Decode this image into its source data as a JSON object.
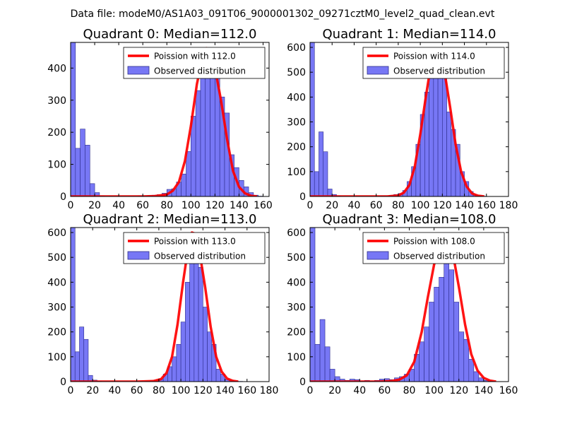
{
  "suptitle": "Data file: modeM0/AS1A03_091T06_9000001302_09271cztM0_level2_quad_clean.evt",
  "colors": {
    "bar_fill": "#7777f5",
    "bar_edge": "#2d2d8c",
    "line": "#ff0000"
  },
  "chart_data": [
    {
      "type": "bar",
      "title": "Quadrant 0: Median=112.0",
      "xlim": [
        0,
        165
      ],
      "ylim": [
        0,
        480
      ],
      "xticks": [
        0,
        20,
        40,
        60,
        80,
        100,
        120,
        140,
        160
      ],
      "yticks": [
        0,
        100,
        200,
        300,
        400
      ],
      "bin_width": 4,
      "legend": {
        "line_label": "Poission with 112.0",
        "bar_label": "Observed distribution",
        "position": "upper-right"
      },
      "bars": [
        [
          0,
          480
        ],
        [
          4,
          150
        ],
        [
          8,
          210
        ],
        [
          12,
          160
        ],
        [
          16,
          40
        ],
        [
          20,
          12
        ],
        [
          24,
          2
        ],
        [
          28,
          1
        ],
        [
          32,
          1
        ],
        [
          36,
          1
        ],
        [
          40,
          1
        ],
        [
          44,
          1
        ],
        [
          48,
          1
        ],
        [
          52,
          1
        ],
        [
          56,
          2
        ],
        [
          60,
          2
        ],
        [
          64,
          3
        ],
        [
          68,
          4
        ],
        [
          72,
          6
        ],
        [
          76,
          10
        ],
        [
          80,
          22
        ],
        [
          84,
          24
        ],
        [
          88,
          45
        ],
        [
          92,
          70
        ],
        [
          96,
          140
        ],
        [
          100,
          250
        ],
        [
          104,
          330
        ],
        [
          108,
          400
        ],
        [
          112,
          460
        ],
        [
          116,
          450
        ],
        [
          120,
          380
        ],
        [
          124,
          310
        ],
        [
          128,
          260
        ],
        [
          132,
          130
        ],
        [
          136,
          90
        ],
        [
          140,
          50
        ],
        [
          144,
          30
        ],
        [
          148,
          12
        ],
        [
          152,
          4
        ],
        [
          156,
          1
        ]
      ],
      "curve": [
        [
          0,
          0
        ],
        [
          60,
          0
        ],
        [
          70,
          1
        ],
        [
          80,
          6
        ],
        [
          85,
          18
        ],
        [
          90,
          45
        ],
        [
          95,
          110
        ],
        [
          100,
          220
        ],
        [
          105,
          350
        ],
        [
          110,
          440
        ],
        [
          113,
          462
        ],
        [
          116,
          455
        ],
        [
          120,
          400
        ],
        [
          125,
          300
        ],
        [
          130,
          180
        ],
        [
          135,
          80
        ],
        [
          140,
          30
        ],
        [
          145,
          10
        ],
        [
          150,
          2
        ],
        [
          155,
          0
        ]
      ]
    },
    {
      "type": "bar",
      "title": "Quadrant 1: Median=114.0",
      "xlim": [
        0,
        180
      ],
      "ylim": [
        0,
        620
      ],
      "xticks": [
        0,
        20,
        40,
        60,
        80,
        100,
        120,
        140,
        160,
        180
      ],
      "yticks": [
        0,
        100,
        200,
        300,
        400,
        500,
        600
      ],
      "bin_width": 4,
      "legend": {
        "line_label": "Poission with 114.0",
        "bar_label": "Observed distribution",
        "position": "upper-right"
      },
      "bars": [
        [
          0,
          620
        ],
        [
          4,
          100
        ],
        [
          8,
          260
        ],
        [
          12,
          180
        ],
        [
          16,
          30
        ],
        [
          20,
          8
        ],
        [
          24,
          2
        ],
        [
          28,
          1
        ],
        [
          32,
          1
        ],
        [
          36,
          1
        ],
        [
          40,
          1
        ],
        [
          44,
          1
        ],
        [
          48,
          1
        ],
        [
          52,
          1
        ],
        [
          56,
          1
        ],
        [
          60,
          1
        ],
        [
          64,
          2
        ],
        [
          68,
          2
        ],
        [
          72,
          4
        ],
        [
          76,
          8
        ],
        [
          80,
          12
        ],
        [
          84,
          24
        ],
        [
          88,
          60
        ],
        [
          92,
          120
        ],
        [
          96,
          210
        ],
        [
          100,
          330
        ],
        [
          104,
          420
        ],
        [
          108,
          500
        ],
        [
          112,
          560
        ],
        [
          116,
          520
        ],
        [
          120,
          490
        ],
        [
          124,
          340
        ],
        [
          128,
          270
        ],
        [
          132,
          210
        ],
        [
          136,
          100
        ],
        [
          140,
          60
        ],
        [
          144,
          20
        ],
        [
          148,
          8
        ],
        [
          152,
          3
        ],
        [
          156,
          1
        ]
      ],
      "curve": [
        [
          0,
          0
        ],
        [
          70,
          0
        ],
        [
          80,
          4
        ],
        [
          85,
          15
        ],
        [
          90,
          45
        ],
        [
          95,
          120
        ],
        [
          100,
          250
        ],
        [
          105,
          400
        ],
        [
          110,
          540
        ],
        [
          115,
          595
        ],
        [
          118,
          580
        ],
        [
          122,
          500
        ],
        [
          127,
          360
        ],
        [
          132,
          210
        ],
        [
          137,
          100
        ],
        [
          142,
          40
        ],
        [
          147,
          12
        ],
        [
          152,
          3
        ],
        [
          158,
          0
        ]
      ]
    },
    {
      "type": "bar",
      "title": "Quadrant 2: Median=113.0",
      "xlim": [
        0,
        180
      ],
      "ylim": [
        0,
        620
      ],
      "xticks": [
        0,
        20,
        40,
        60,
        80,
        100,
        120,
        140,
        160,
        180
      ],
      "yticks": [
        0,
        100,
        200,
        300,
        400,
        500,
        600
      ],
      "bin_width": 4,
      "legend": {
        "line_label": "Poission with 113.0",
        "bar_label": "Observed distribution",
        "position": "upper-right"
      },
      "bars": [
        [
          0,
          620
        ],
        [
          4,
          120
        ],
        [
          8,
          220
        ],
        [
          12,
          170
        ],
        [
          16,
          25
        ],
        [
          20,
          6
        ],
        [
          24,
          2
        ],
        [
          28,
          1
        ],
        [
          32,
          1
        ],
        [
          36,
          1
        ],
        [
          40,
          1
        ],
        [
          44,
          1
        ],
        [
          48,
          1
        ],
        [
          52,
          1
        ],
        [
          56,
          1
        ],
        [
          60,
          1
        ],
        [
          64,
          1
        ],
        [
          68,
          2
        ],
        [
          72,
          3
        ],
        [
          76,
          5
        ],
        [
          80,
          10
        ],
        [
          84,
          30
        ],
        [
          88,
          60
        ],
        [
          92,
          100
        ],
        [
          96,
          150
        ],
        [
          100,
          240
        ],
        [
          104,
          400
        ],
        [
          108,
          530
        ],
        [
          112,
          550
        ],
        [
          116,
          460
        ],
        [
          120,
          300
        ],
        [
          124,
          200
        ],
        [
          128,
          150
        ],
        [
          132,
          50
        ],
        [
          136,
          30
        ],
        [
          140,
          10
        ],
        [
          144,
          5
        ],
        [
          148,
          2
        ],
        [
          152,
          1
        ]
      ],
      "curve": [
        [
          0,
          0
        ],
        [
          60,
          0
        ],
        [
          75,
          2
        ],
        [
          82,
          10
        ],
        [
          87,
          35
        ],
        [
          92,
          100
        ],
        [
          97,
          230
        ],
        [
          102,
          400
        ],
        [
          107,
          550
        ],
        [
          110,
          600
        ],
        [
          113,
          595
        ],
        [
          117,
          520
        ],
        [
          122,
          380
        ],
        [
          127,
          220
        ],
        [
          132,
          100
        ],
        [
          137,
          40
        ],
        [
          142,
          12
        ],
        [
          147,
          3
        ],
        [
          152,
          0
        ]
      ]
    },
    {
      "type": "bar",
      "title": "Quadrant 3: Median=108.0",
      "xlim": [
        0,
        160
      ],
      "ylim": [
        0,
        620
      ],
      "xticks": [
        0,
        20,
        40,
        60,
        80,
        100,
        120,
        140,
        160
      ],
      "yticks": [
        0,
        100,
        200,
        300,
        400,
        500,
        600
      ],
      "bin_width": 4,
      "legend": {
        "line_label": "Poission with 108.0",
        "bar_label": "Observed distribution",
        "position": "upper-right"
      },
      "bars": [
        [
          0,
          620
        ],
        [
          4,
          150
        ],
        [
          8,
          250
        ],
        [
          12,
          140
        ],
        [
          16,
          50
        ],
        [
          20,
          20
        ],
        [
          24,
          10
        ],
        [
          28,
          5
        ],
        [
          32,
          10
        ],
        [
          36,
          8
        ],
        [
          40,
          3
        ],
        [
          44,
          5
        ],
        [
          48,
          2
        ],
        [
          52,
          5
        ],
        [
          56,
          10
        ],
        [
          60,
          12
        ],
        [
          64,
          8
        ],
        [
          68,
          15
        ],
        [
          72,
          20
        ],
        [
          76,
          30
        ],
        [
          80,
          50
        ],
        [
          84,
          110
        ],
        [
          88,
          160
        ],
        [
          92,
          220
        ],
        [
          96,
          320
        ],
        [
          100,
          380
        ],
        [
          104,
          420
        ],
        [
          108,
          520
        ],
        [
          112,
          450
        ],
        [
          116,
          320
        ],
        [
          120,
          200
        ],
        [
          124,
          170
        ],
        [
          128,
          90
        ],
        [
          132,
          40
        ],
        [
          136,
          15
        ],
        [
          140,
          5
        ],
        [
          144,
          2
        ]
      ],
      "curve": [
        [
          0,
          0
        ],
        [
          55,
          0
        ],
        [
          65,
          2
        ],
        [
          72,
          8
        ],
        [
          78,
          25
        ],
        [
          84,
          80
        ],
        [
          90,
          200
        ],
        [
          95,
          340
        ],
        [
          100,
          470
        ],
        [
          105,
          565
        ],
        [
          108,
          590
        ],
        [
          111,
          585
        ],
        [
          115,
          520
        ],
        [
          120,
          380
        ],
        [
          125,
          230
        ],
        [
          130,
          110
        ],
        [
          135,
          45
        ],
        [
          140,
          15
        ],
        [
          145,
          4
        ],
        [
          150,
          0
        ]
      ]
    }
  ]
}
